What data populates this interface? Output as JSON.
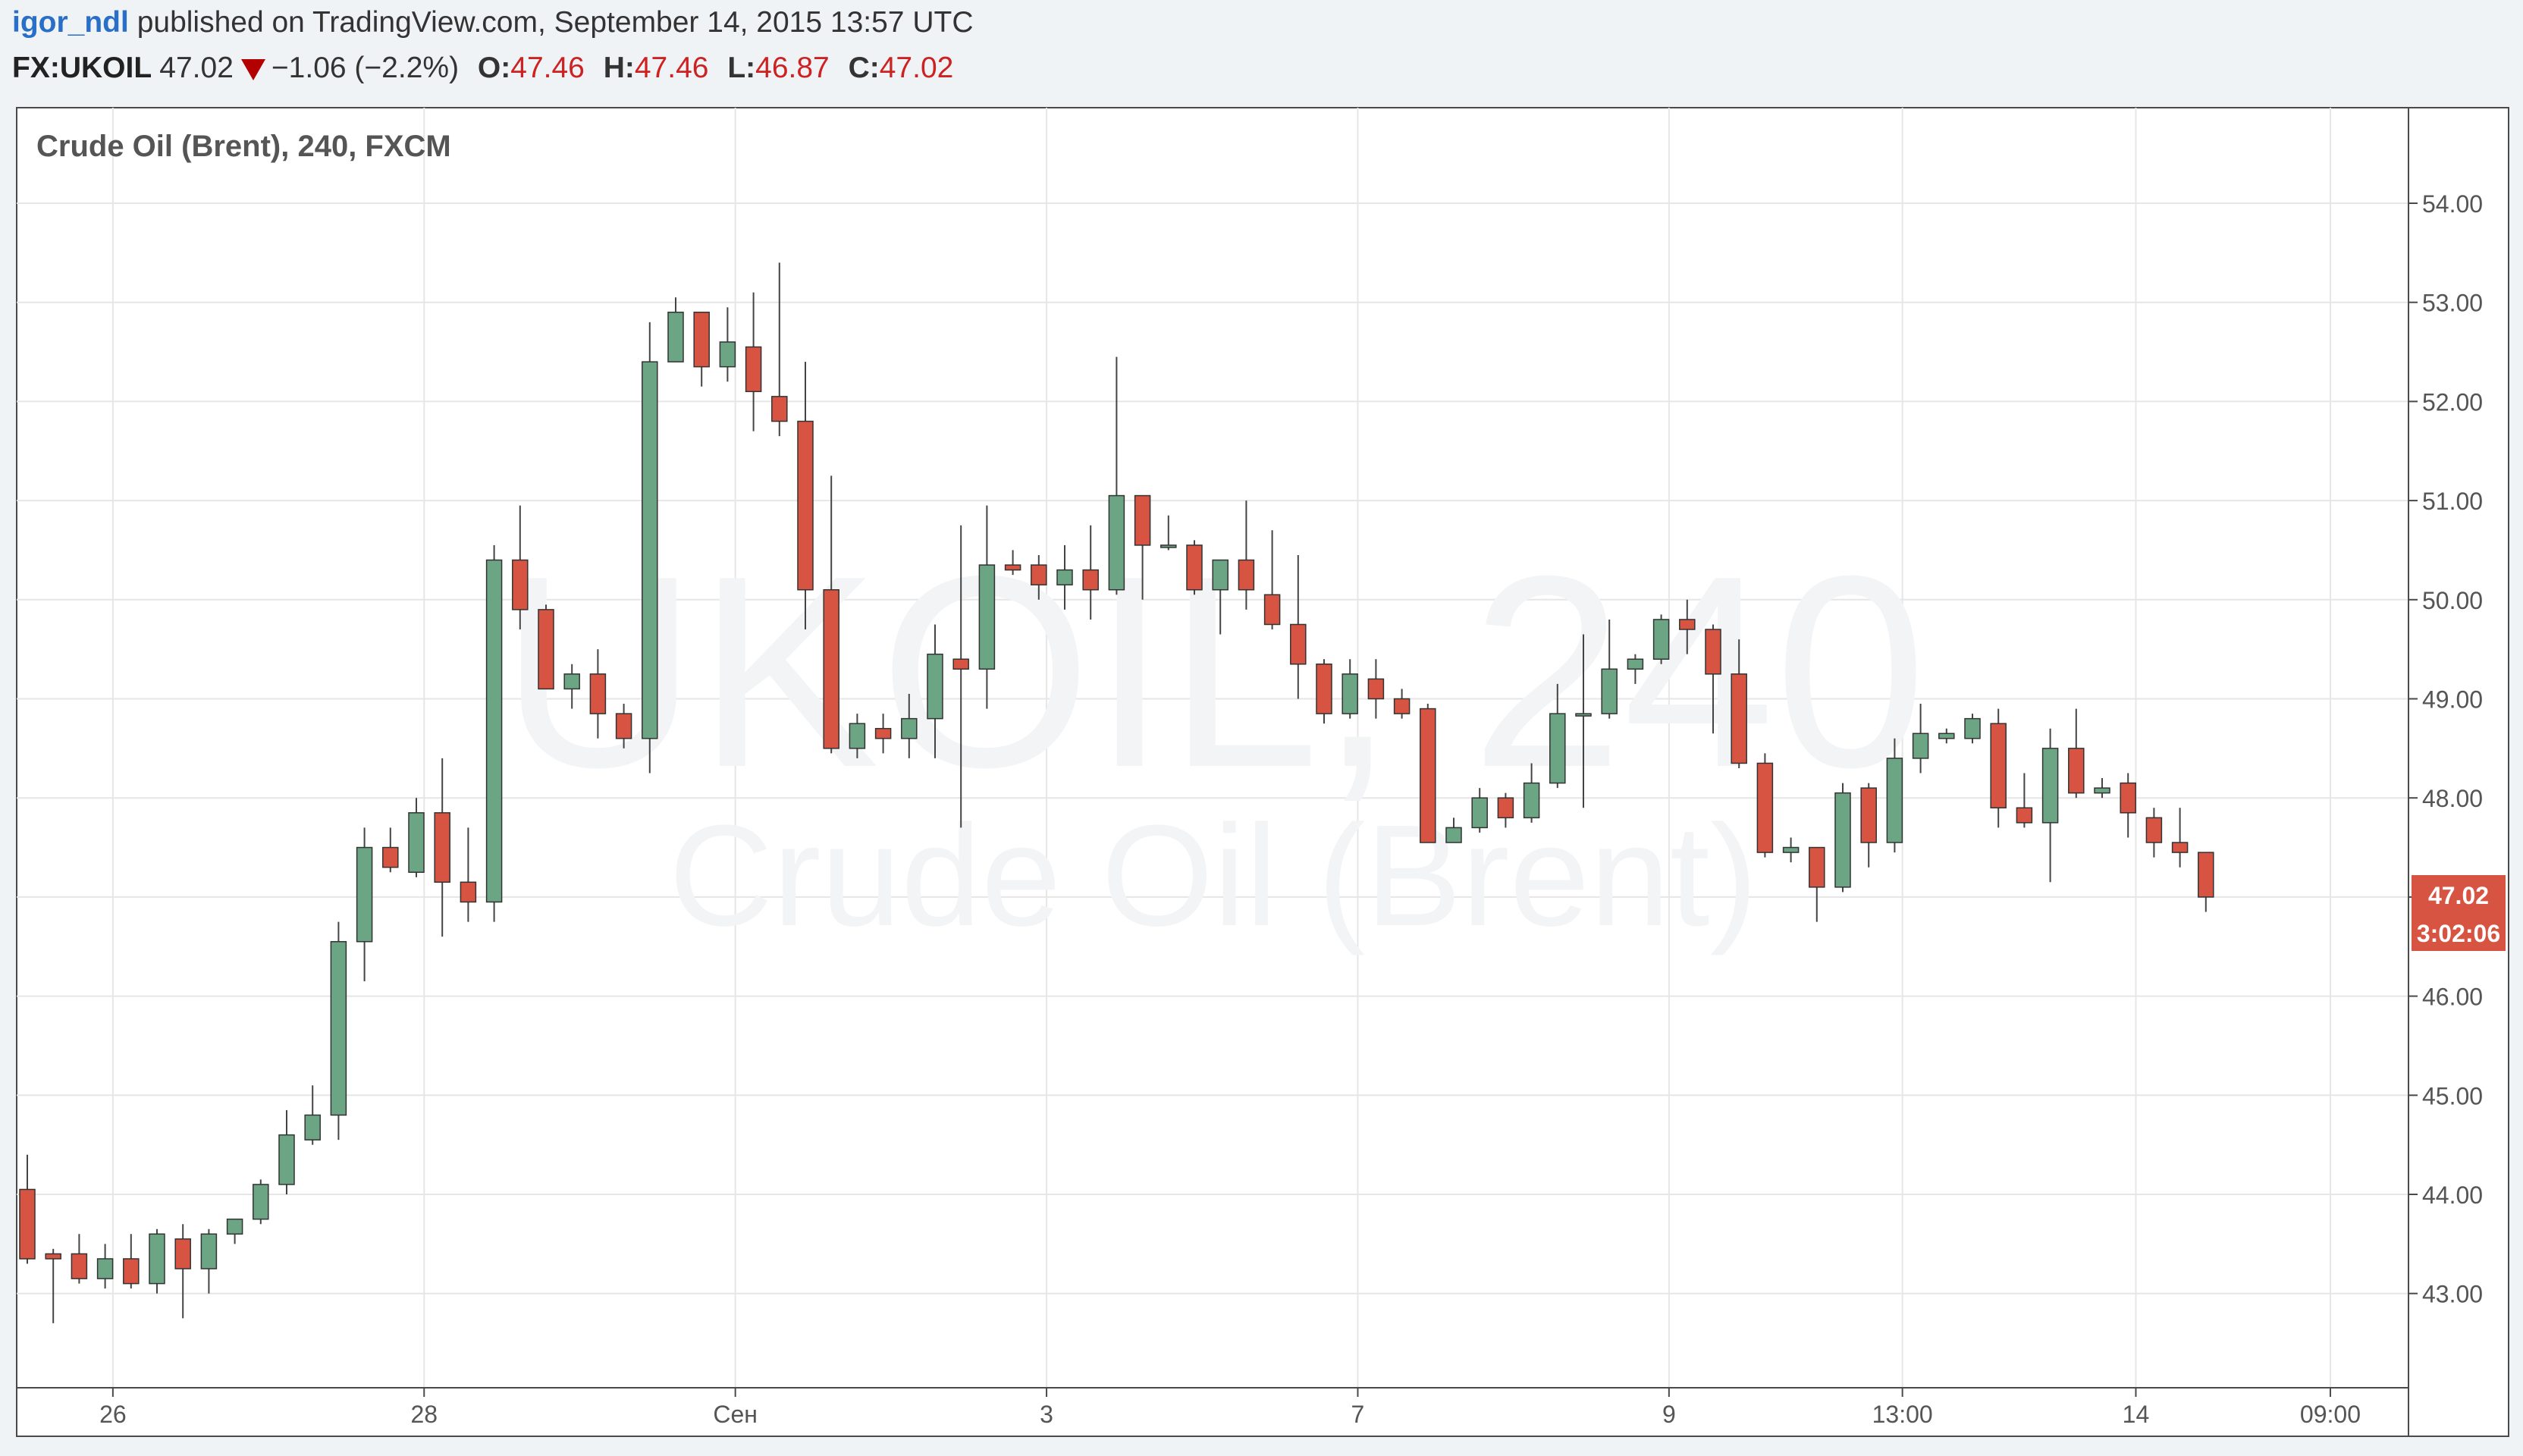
{
  "header": {
    "user": "igor_ndl",
    "published_text": "published on TradingView.com, September 14, 2015 13:57 UTC"
  },
  "quote": {
    "symbol": "FX:UKOIL",
    "last": "47.02",
    "change": "−1.06 (−2.2%)",
    "o_label": "O:",
    "o": "47.46",
    "h_label": "H:",
    "h": "47.46",
    "l_label": "L:",
    "l": "46.87",
    "c_label": "C:",
    "c": "47.02"
  },
  "watermark": {
    "line1": "UKOIL, 240",
    "line2": "Crude Oil (Brent)"
  },
  "colors": {
    "up": "#6ba583",
    "down": "#d75442",
    "grid": "#e6e6e6",
    "price_tag": "#d75442"
  },
  "chart_data": {
    "type": "candlestick",
    "title": "Crude Oil (Brent), 240, FXCM",
    "interval": "240",
    "ylim": [
      42,
      54.9
    ],
    "y_ticks": [
      "54.00",
      "53.00",
      "52.00",
      "51.00",
      "50.00",
      "49.00",
      "48.00",
      "47.00",
      "46.00",
      "45.00",
      "44.00",
      "43.00"
    ],
    "x_ticks": [
      "26",
      "28",
      "Сен",
      "3",
      "7",
      "9",
      "13:00",
      "14",
      "09:00"
    ],
    "x_tick_index": [
      3.3,
      15.3,
      27.3,
      39.3,
      51.3,
      63.3,
      72.3,
      81.3,
      88.8
    ],
    "last_price_label": "47.02",
    "countdown_label": "3:02:06",
    "ohlc": [
      [
        44.05,
        44.4,
        43.3,
        43.35
      ],
      [
        43.4,
        43.45,
        42.7,
        43.35
      ],
      [
        43.4,
        43.6,
        43.1,
        43.15
      ],
      [
        43.15,
        43.5,
        43.05,
        43.35
      ],
      [
        43.35,
        43.6,
        43.05,
        43.1
      ],
      [
        43.1,
        43.65,
        43.0,
        43.6
      ],
      [
        43.55,
        43.7,
        42.75,
        43.25
      ],
      [
        43.25,
        43.65,
        43.0,
        43.6
      ],
      [
        43.6,
        43.75,
        43.5,
        43.75
      ],
      [
        43.75,
        44.15,
        43.7,
        44.1
      ],
      [
        44.1,
        44.85,
        44.0,
        44.6
      ],
      [
        44.55,
        45.1,
        44.5,
        44.8
      ],
      [
        44.8,
        46.75,
        44.55,
        46.55
      ],
      [
        46.55,
        47.7,
        46.15,
        47.5
      ],
      [
        47.5,
        47.7,
        47.25,
        47.3
      ],
      [
        47.25,
        48.0,
        47.2,
        47.85
      ],
      [
        47.85,
        48.4,
        46.6,
        47.15
      ],
      [
        47.15,
        47.7,
        46.75,
        46.95
      ],
      [
        46.95,
        50.55,
        46.75,
        50.4
      ],
      [
        50.4,
        50.95,
        49.7,
        49.9
      ],
      [
        49.9,
        49.95,
        49.1,
        49.1
      ],
      [
        49.1,
        49.35,
        48.9,
        49.25
      ],
      [
        49.25,
        49.5,
        48.6,
        48.85
      ],
      [
        48.85,
        48.95,
        48.5,
        48.6
      ],
      [
        48.6,
        52.8,
        48.25,
        52.4
      ],
      [
        52.4,
        53.05,
        52.4,
        52.9
      ],
      [
        52.9,
        52.9,
        52.15,
        52.35
      ],
      [
        52.35,
        52.95,
        52.2,
        52.6
      ],
      [
        52.55,
        53.1,
        51.7,
        52.1
      ],
      [
        52.05,
        53.4,
        51.65,
        51.8
      ],
      [
        51.8,
        52.4,
        49.7,
        50.1
      ],
      [
        50.1,
        51.25,
        48.45,
        48.5
      ],
      [
        48.5,
        48.85,
        48.4,
        48.75
      ],
      [
        48.7,
        48.85,
        48.45,
        48.6
      ],
      [
        48.6,
        49.05,
        48.4,
        48.8
      ],
      [
        48.8,
        49.75,
        48.4,
        49.45
      ],
      [
        49.4,
        50.75,
        47.7,
        49.3
      ],
      [
        49.3,
        50.95,
        48.9,
        50.35
      ],
      [
        50.35,
        50.5,
        50.25,
        50.3
      ],
      [
        50.35,
        50.45,
        50.0,
        50.15
      ],
      [
        50.15,
        50.55,
        49.9,
        50.3
      ],
      [
        50.3,
        50.75,
        49.8,
        50.1
      ],
      [
        50.1,
        52.45,
        50.05,
        51.05
      ],
      [
        51.05,
        51.05,
        50.0,
        50.55
      ],
      [
        50.55,
        50.85,
        50.5,
        50.55
      ],
      [
        50.55,
        50.6,
        50.05,
        50.1
      ],
      [
        50.1,
        50.4,
        49.65,
        50.4
      ],
      [
        50.4,
        51.0,
        49.9,
        50.1
      ],
      [
        50.05,
        50.7,
        49.7,
        49.75
      ],
      [
        49.75,
        50.45,
        49.0,
        49.35
      ],
      [
        49.35,
        49.4,
        48.75,
        48.85
      ],
      [
        48.85,
        49.4,
        48.8,
        49.25
      ],
      [
        49.2,
        49.4,
        48.8,
        49.0
      ],
      [
        49.0,
        49.1,
        48.8,
        48.85
      ],
      [
        48.9,
        48.95,
        47.55,
        47.55
      ],
      [
        47.55,
        47.8,
        47.55,
        47.7
      ],
      [
        47.7,
        48.1,
        47.65,
        48.0
      ],
      [
        48.0,
        48.05,
        47.7,
        47.8
      ],
      [
        47.8,
        48.35,
        47.75,
        48.15
      ],
      [
        48.15,
        49.15,
        48.1,
        48.85
      ],
      [
        48.85,
        49.65,
        47.9,
        48.85
      ],
      [
        48.85,
        49.8,
        48.8,
        49.3
      ],
      [
        49.3,
        49.45,
        49.15,
        49.4
      ],
      [
        49.4,
        49.85,
        49.35,
        49.8
      ],
      [
        49.8,
        50.0,
        49.45,
        49.7
      ],
      [
        49.7,
        49.75,
        48.65,
        49.25
      ],
      [
        49.25,
        49.6,
        48.3,
        48.35
      ],
      [
        48.35,
        48.45,
        47.4,
        47.45
      ],
      [
        47.45,
        47.6,
        47.35,
        47.5
      ],
      [
        47.5,
        47.5,
        46.75,
        47.1
      ],
      [
        47.1,
        48.15,
        47.05,
        48.05
      ],
      [
        48.1,
        48.15,
        47.3,
        47.55
      ],
      [
        47.55,
        48.6,
        47.45,
        48.4
      ],
      [
        48.4,
        48.95,
        48.25,
        48.65
      ],
      [
        48.6,
        48.7,
        48.55,
        48.65
      ],
      [
        48.6,
        48.85,
        48.55,
        48.8
      ],
      [
        48.75,
        48.9,
        47.7,
        47.9
      ],
      [
        47.9,
        48.25,
        47.7,
        47.75
      ],
      [
        47.75,
        48.7,
        47.15,
        48.5
      ],
      [
        48.5,
        48.9,
        48.0,
        48.05
      ],
      [
        48.05,
        48.2,
        48.0,
        48.1
      ],
      [
        48.15,
        48.25,
        47.6,
        47.85
      ],
      [
        47.8,
        47.9,
        47.4,
        47.55
      ],
      [
        47.55,
        47.9,
        47.3,
        47.45
      ],
      [
        47.45,
        47.45,
        46.85,
        47.0
      ]
    ]
  }
}
